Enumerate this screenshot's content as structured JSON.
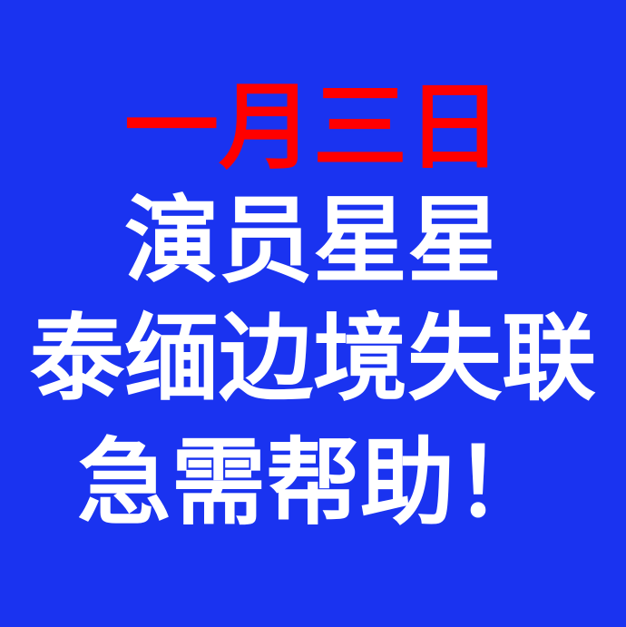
{
  "poster": {
    "line1": "一月三日",
    "line2": "演员星星",
    "line3": "泰缅边境失联",
    "line4": "急需帮助！"
  },
  "colors": {
    "background": "#1a33f0",
    "headline_red": "#ff0000",
    "text_white": "#ffffff"
  }
}
